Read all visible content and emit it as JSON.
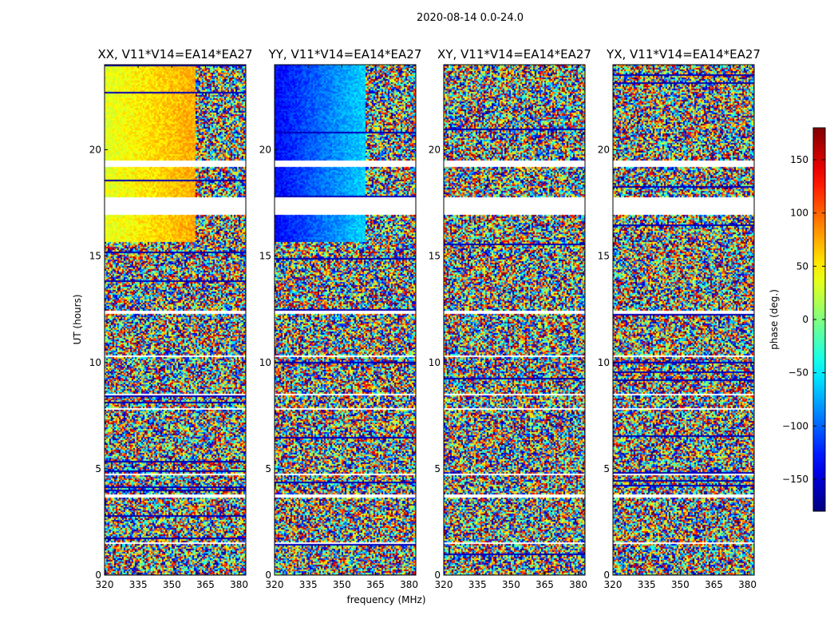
{
  "chart_data": {
    "type": "heatmap",
    "suptitle": "2020-08-14 0.0-24.0",
    "xlabel": "frequency (MHz)",
    "ylabel": "UT (hours)",
    "xlim": [
      320,
      383
    ],
    "ylim": [
      0,
      24
    ],
    "xticks": [
      "320",
      "335",
      "350",
      "365",
      "380"
    ],
    "xtick_values": [
      320,
      335,
      350,
      365,
      380
    ],
    "yticks": [
      "0",
      "5",
      "10",
      "15",
      "20"
    ],
    "ytick_values": [
      0,
      5,
      10,
      15,
      20
    ],
    "panels": [
      {
        "name": "XX",
        "title": "XX, V11*V14=EA14*EA27",
        "coherent_phase_deg": 35,
        "coherent_phase_deg_high": 75,
        "coherent_until_mhz": 360
      },
      {
        "name": "YY",
        "title": "YY, V11*V14=EA14*EA27",
        "coherent_phase_deg": -135,
        "coherent_phase_deg_high": -60,
        "coherent_until_mhz": 360
      },
      {
        "name": "XY",
        "title": "XY, V11*V14=EA14*EA27",
        "coherent_phase_deg": null,
        "coherent_phase_deg_high": null,
        "coherent_until_mhz": null
      },
      {
        "name": "YX",
        "title": "YX, V11*V14=EA14*EA27",
        "coherent_phase_deg": null,
        "coherent_phase_deg_high": null,
        "coherent_until_mhz": null
      }
    ],
    "coherent_ut_range": [
      15.7,
      24.0
    ],
    "data_gaps_ut": [
      [
        19.2,
        19.5
      ],
      [
        17.0,
        17.8
      ],
      [
        12.3,
        12.5
      ],
      [
        10.3,
        10.4
      ],
      [
        8.5,
        8.6
      ],
      [
        7.8,
        7.9
      ],
      [
        4.7,
        4.8
      ],
      [
        3.7,
        3.8
      ],
      [
        1.5,
        1.55
      ]
    ],
    "colorbar": {
      "label": "phase (deg.)",
      "range": [
        -180,
        180
      ],
      "ticks": [
        "150",
        "100",
        "50",
        "0",
        "−50",
        "−100",
        "−150"
      ],
      "tick_values": [
        150,
        100,
        50,
        0,
        -50,
        -100,
        -150
      ],
      "colormap": "jet"
    }
  }
}
